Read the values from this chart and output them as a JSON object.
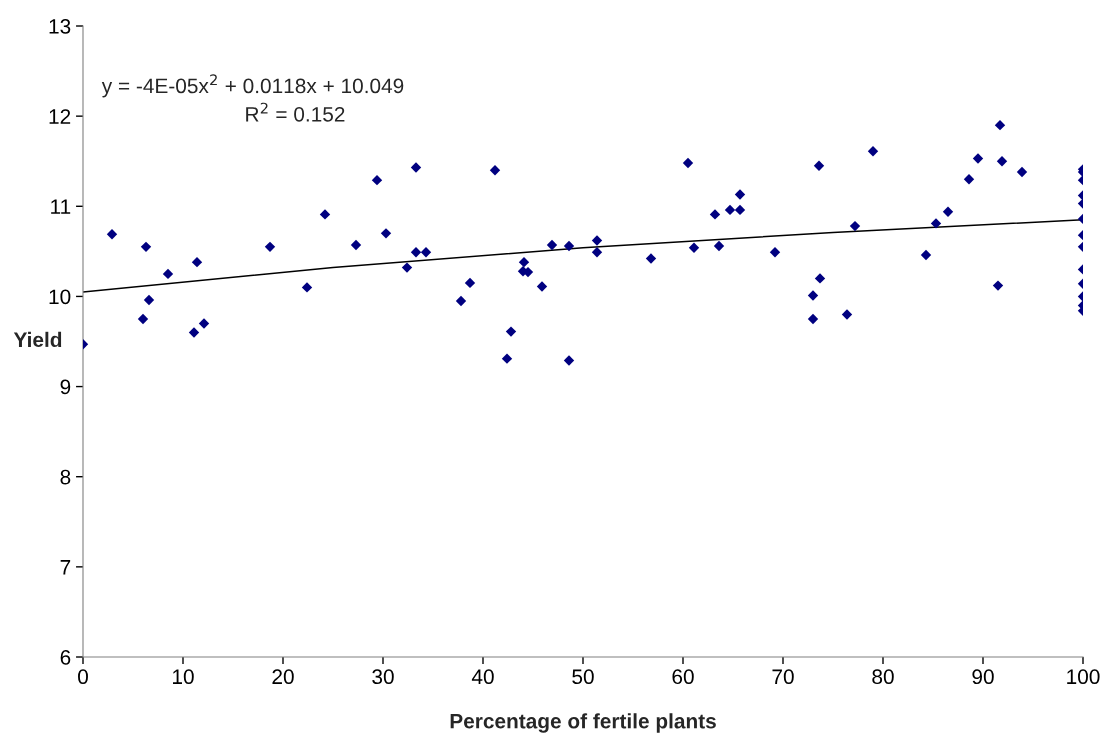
{
  "chart_data": {
    "type": "scatter",
    "xlabel": "Percentage of fertile plants",
    "ylabel": "Yield",
    "xlim": [
      0,
      100
    ],
    "xticks": [
      0,
      10,
      20,
      30,
      40,
      50,
      60,
      70,
      80,
      90,
      100
    ],
    "ylim": [
      6,
      13
    ],
    "yticks": [
      6,
      7,
      8,
      9,
      10,
      11,
      12,
      13
    ],
    "grid": false,
    "legend": false,
    "marker": "diamond",
    "annotations": [
      "y = -4E-05x$^{2}$ + 0.0118x + 10.049",
      "R$^{2}$ = 0.152"
    ],
    "series": [
      {
        "color": "#000080",
        "x": [
          0,
          2.9,
          6.3,
          6.0,
          6.6,
          8.5,
          11.4,
          11.1,
          12.1,
          18.7,
          22.4,
          24.2,
          27.3,
          29.4,
          33.3,
          30.3,
          32.4,
          33.3,
          34.3,
          38.7,
          37.8,
          41.2,
          42.8,
          42.4,
          44.1,
          44.0,
          44.5,
          45.9,
          46.9,
          48.6,
          48.6,
          51.4,
          51.4,
          56.8,
          60.5,
          61.1,
          63.2,
          63.6,
          64.7,
          65.7,
          65.7,
          69.2,
          73.6,
          73.7,
          73.0,
          73.0,
          76.4,
          77.2,
          79.0,
          84.3,
          85.3,
          86.5,
          88.6,
          89.5,
          91.7,
          91.9,
          91.5,
          93.9,
          100,
          100,
          100,
          100,
          100,
          100,
          100,
          100,
          100,
          100,
          100,
          100,
          100
        ],
        "values": [
          9.47,
          10.69,
          10.55,
          9.75,
          9.96,
          10.25,
          10.38,
          9.6,
          9.7,
          10.55,
          10.1,
          10.91,
          10.57,
          11.29,
          11.43,
          10.7,
          10.32,
          10.49,
          10.49,
          10.15,
          9.95,
          11.4,
          9.61,
          9.31,
          10.38,
          10.28,
          10.27,
          10.11,
          10.57,
          10.56,
          9.29,
          10.62,
          10.49,
          10.42,
          11.48,
          10.54,
          10.91,
          10.56,
          10.96,
          11.13,
          10.96,
          10.49,
          11.45,
          10.2,
          10.01,
          9.75,
          9.8,
          10.78,
          11.61,
          10.46,
          10.81,
          10.94,
          11.3,
          11.53,
          11.9,
          11.5,
          10.12,
          11.38,
          11.41,
          11.38,
          11.29,
          11.12,
          11.03,
          10.86,
          10.68,
          10.55,
          10.3,
          10.14,
          10.0,
          9.9,
          9.84
        ]
      },
      {
        "type": "line",
        "color": "#000000",
        "marker": "none",
        "line_style": "solid",
        "x": [
          0,
          25,
          50,
          75,
          100
        ],
        "values": [
          10.05,
          10.32,
          10.54,
          10.71,
          10.85
        ]
      }
    ]
  }
}
